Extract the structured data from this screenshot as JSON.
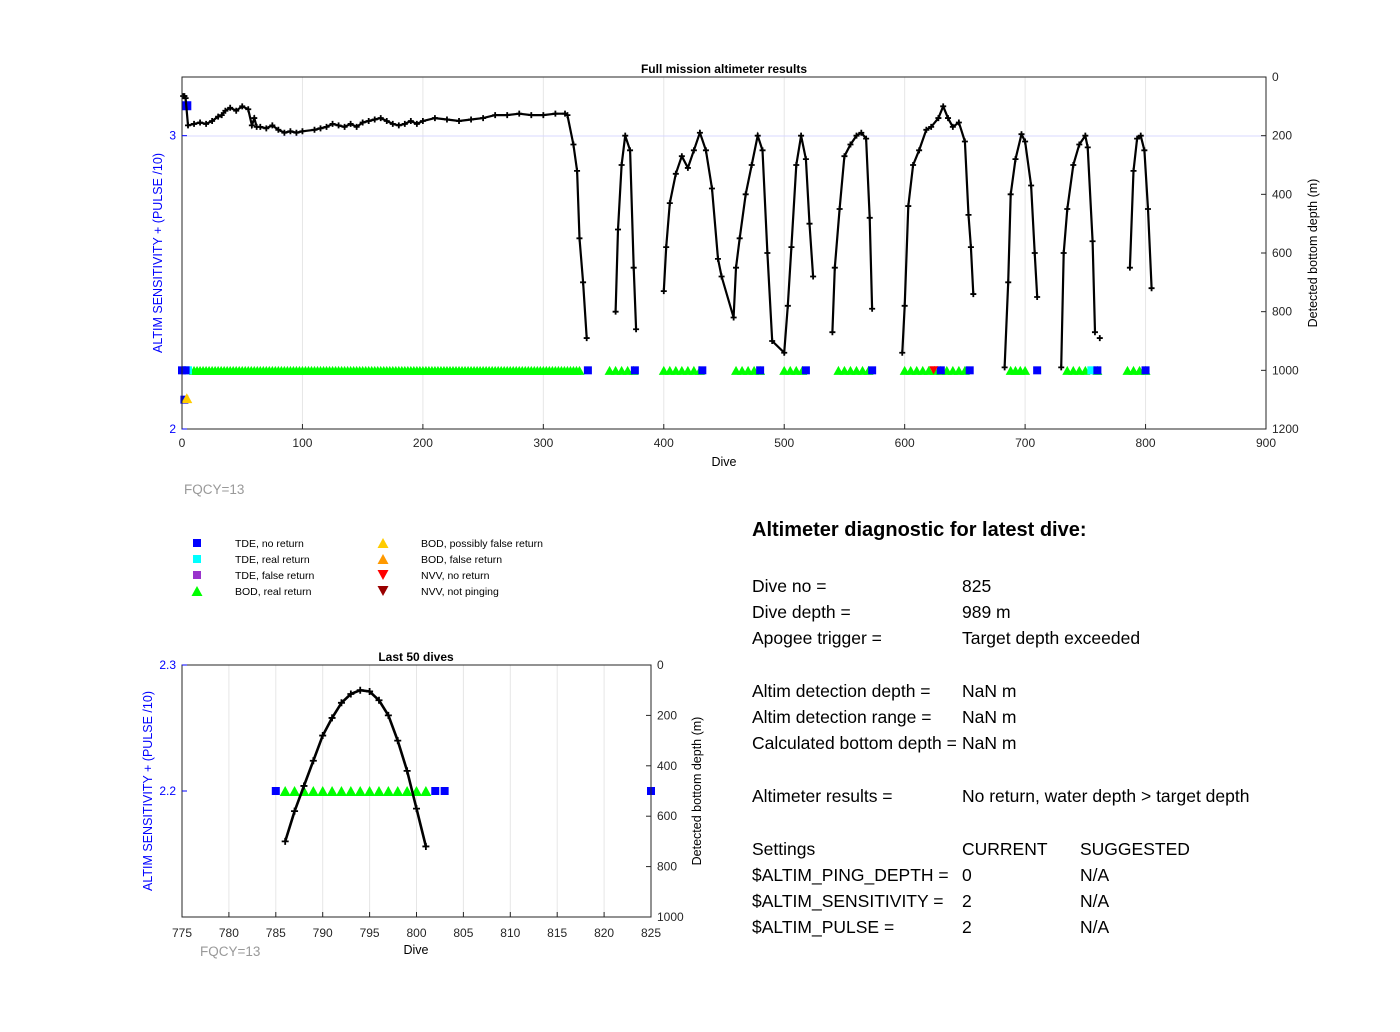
{
  "full_mission": {
    "title": "Full mission altimeter results",
    "xlabel": "Dive",
    "ylabel_left": "ALTIM SENSITIVITY + (PULSE /10)",
    "ylabel_right": "Detected bottom depth (m)",
    "fqcy_label": "FQCY=13",
    "x_ticks": [
      "0",
      "100",
      "200",
      "300",
      "400",
      "500",
      "600",
      "700",
      "800",
      "900"
    ],
    "y_left_ticks": [
      "2",
      "3"
    ],
    "y_right_ticks": [
      "0",
      "200",
      "400",
      "600",
      "800",
      "1000",
      "1200"
    ],
    "xlim": [
      0,
      900
    ],
    "ylim_left": [
      2,
      3.2
    ],
    "ylim_right": [
      1200,
      0
    ],
    "depth_sample": [
      [
        1,
        65
      ],
      [
        2,
        65
      ],
      [
        3,
        72
      ],
      [
        5,
        165
      ],
      [
        10,
        160
      ],
      [
        15,
        155
      ],
      [
        20,
        160
      ],
      [
        25,
        150
      ],
      [
        30,
        135
      ],
      [
        33,
        130
      ],
      [
        36,
        115
      ],
      [
        40,
        105
      ],
      [
        45,
        115
      ],
      [
        50,
        100
      ],
      [
        55,
        110
      ],
      [
        58,
        165
      ],
      [
        60,
        140
      ],
      [
        62,
        170
      ],
      [
        65,
        170
      ],
      [
        70,
        175
      ],
      [
        75,
        165
      ],
      [
        80,
        180
      ],
      [
        85,
        190
      ],
      [
        90,
        185
      ],
      [
        95,
        190
      ],
      [
        100,
        185
      ],
      [
        110,
        180
      ],
      [
        115,
        175
      ],
      [
        120,
        170
      ],
      [
        125,
        160
      ],
      [
        130,
        165
      ],
      [
        135,
        170
      ],
      [
        140,
        160
      ],
      [
        145,
        170
      ],
      [
        150,
        155
      ],
      [
        155,
        150
      ],
      [
        160,
        145
      ],
      [
        165,
        140
      ],
      [
        170,
        150
      ],
      [
        175,
        160
      ],
      [
        180,
        165
      ],
      [
        185,
        160
      ],
      [
        190,
        150
      ],
      [
        195,
        160
      ],
      [
        200,
        150
      ],
      [
        210,
        140
      ],
      [
        220,
        145
      ],
      [
        230,
        150
      ],
      [
        240,
        145
      ],
      [
        250,
        140
      ],
      [
        260,
        130
      ],
      [
        270,
        130
      ],
      [
        280,
        125
      ],
      [
        290,
        130
      ],
      [
        300,
        130
      ],
      [
        310,
        125
      ],
      [
        318,
        125
      ],
      [
        320,
        130
      ],
      [
        325,
        230
      ],
      [
        328,
        320
      ],
      [
        330,
        550
      ],
      [
        333,
        700
      ],
      [
        336,
        890
      ],
      [
        360,
        800
      ],
      [
        362,
        520
      ],
      [
        365,
        300
      ],
      [
        368,
        200
      ],
      [
        372,
        250
      ],
      [
        375,
        650
      ],
      [
        377,
        860
      ],
      [
        400,
        730
      ],
      [
        402,
        580
      ],
      [
        405,
        430
      ],
      [
        410,
        330
      ],
      [
        415,
        270
      ],
      [
        420,
        310
      ],
      [
        425,
        250
      ],
      [
        430,
        190
      ],
      [
        435,
        250
      ],
      [
        440,
        380
      ],
      [
        445,
        620
      ],
      [
        448,
        680
      ],
      [
        458,
        820
      ],
      [
        460,
        650
      ],
      [
        463,
        550
      ],
      [
        468,
        400
      ],
      [
        473,
        300
      ],
      [
        478,
        200
      ],
      [
        482,
        250
      ],
      [
        486,
        600
      ],
      [
        490,
        900
      ],
      [
        500,
        940
      ],
      [
        503,
        780
      ],
      [
        506,
        580
      ],
      [
        510,
        300
      ],
      [
        514,
        200
      ],
      [
        518,
        280
      ],
      [
        521,
        500
      ],
      [
        524,
        680
      ],
      [
        540,
        870
      ],
      [
        542,
        650
      ],
      [
        546,
        450
      ],
      [
        550,
        270
      ],
      [
        555,
        230
      ],
      [
        560,
        200
      ],
      [
        564,
        190
      ],
      [
        568,
        210
      ],
      [
        571,
        480
      ],
      [
        573,
        790
      ],
      [
        598,
        940
      ],
      [
        600,
        780
      ],
      [
        603,
        440
      ],
      [
        607,
        300
      ],
      [
        612,
        250
      ],
      [
        618,
        180
      ],
      [
        622,
        170
      ],
      [
        628,
        140
      ],
      [
        632,
        100
      ],
      [
        636,
        140
      ],
      [
        640,
        170
      ],
      [
        645,
        155
      ],
      [
        650,
        220
      ],
      [
        653,
        470
      ],
      [
        655,
        580
      ],
      [
        657,
        740
      ],
      [
        683,
        990
      ],
      [
        686,
        700
      ],
      [
        688,
        400
      ],
      [
        692,
        280
      ],
      [
        697,
        195
      ],
      [
        700,
        220
      ],
      [
        705,
        370
      ],
      [
        708,
        600
      ],
      [
        710,
        750
      ],
      [
        730,
        990
      ],
      [
        732,
        600
      ],
      [
        735,
        450
      ],
      [
        740,
        300
      ],
      [
        745,
        230
      ],
      [
        750,
        200
      ],
      [
        752,
        240
      ],
      [
        756,
        560
      ],
      [
        758,
        870
      ],
      [
        787,
        650
      ],
      [
        790,
        320
      ],
      [
        793,
        210
      ],
      [
        796,
        200
      ],
      [
        799,
        250
      ],
      [
        802,
        450
      ],
      [
        805,
        720
      ]
    ],
    "marker_dives": {
      "tde_no_return": [
        0,
        3,
        337,
        376,
        432,
        480,
        518,
        573,
        630,
        654,
        710,
        760,
        800
      ],
      "tde_real_return": [
        5,
        755
      ],
      "bod_real_return_range": [
        10,
        330
      ],
      "bod_real_return_extra": [
        355,
        360,
        365,
        370,
        375,
        400,
        405,
        410,
        415,
        420,
        425,
        430,
        460,
        465,
        470,
        475,
        480,
        500,
        505,
        510,
        515,
        545,
        550,
        555,
        560,
        565,
        570,
        600,
        605,
        610,
        615,
        620,
        625,
        630,
        635,
        640,
        645,
        650,
        688,
        692,
        696,
        700,
        735,
        740,
        745,
        750,
        760,
        785,
        790,
        795,
        800
      ],
      "bod_possibly_false": [
        5
      ],
      "nvv_no_return": [
        624
      ]
    }
  },
  "last50": {
    "title": "Last 50 dives",
    "xlabel": "Dive",
    "ylabel_left": "ALTIM SENSITIVITY + (PULSE /10)",
    "ylabel_right": "Detected bottom depth (m)",
    "fqcy_label": "FQCY=13",
    "x_ticks": [
      "775",
      "780",
      "785",
      "790",
      "795",
      "800",
      "805",
      "810",
      "815",
      "820",
      "825"
    ],
    "y_left_ticks": [
      "2.2",
      "2.3"
    ],
    "y_right_ticks": [
      "0",
      "200",
      "400",
      "600",
      "800",
      "1000"
    ],
    "xlim": [
      775,
      825
    ],
    "ylim_left": [
      2.1,
      2.3
    ],
    "ylim_right": [
      1000,
      0
    ]
  },
  "chart_data": [
    {
      "type": "line",
      "title": "Full mission altimeter results",
      "xlabel": "Dive",
      "ylabel": "Detected bottom depth (m)",
      "ylabel_left": "ALTIM SENSITIVITY + (PULSE /10)",
      "xlim": [
        0,
        900
      ],
      "ylim": [
        1200,
        0
      ],
      "grid": true
    },
    {
      "type": "line",
      "title": "Last 50 dives",
      "xlabel": "Dive",
      "ylabel": "Detected bottom depth (m)",
      "ylabel_left": "ALTIM SENSITIVITY + (PULSE /10)",
      "x": [
        786,
        787,
        788,
        789,
        790,
        791,
        792,
        793,
        794,
        795,
        796,
        797,
        798,
        799,
        800,
        801
      ],
      "series": [
        {
          "values": [
            700,
            580,
            480,
            380,
            280,
            210,
            150,
            115,
            100,
            105,
            140,
            200,
            300,
            420,
            570,
            720
          ]
        }
      ],
      "sensitivity_markers": {
        "tde_no_return": [
          785,
          802,
          803,
          825
        ],
        "bod_real_return": [
          786,
          787,
          788,
          789,
          790,
          791,
          792,
          793,
          794,
          795,
          796,
          797,
          798,
          799,
          800,
          801
        ]
      },
      "xlim": [
        775,
        825
      ],
      "ylim": [
        1000,
        0
      ],
      "grid": true
    }
  ],
  "legend": [
    {
      "label": "TDE, no return",
      "marker": "square",
      "color": "#0000ff"
    },
    {
      "label": "TDE, real return",
      "marker": "square",
      "color": "#00ffff"
    },
    {
      "label": "TDE, false return",
      "marker": "square",
      "color": "#9933cc"
    },
    {
      "label": "BOD, real return",
      "marker": "triangle-up",
      "color": "#00ff00"
    },
    {
      "label": "BOD, possibly false return",
      "marker": "triangle-up",
      "color": "#ffcc00"
    },
    {
      "label": "BOD, false return",
      "marker": "triangle-up",
      "color": "#ff9900"
    },
    {
      "label": "NVV, no return",
      "marker": "triangle-down",
      "color": "#ff0000"
    },
    {
      "label": "NVV, not pinging",
      "marker": "triangle-down",
      "color": "#990000"
    }
  ],
  "diagnostic": {
    "title": "Altimeter diagnostic for latest dive:",
    "dive_no_label": "Dive no =",
    "dive_no": "825",
    "dive_depth_label": "Dive depth =",
    "dive_depth": "989 m",
    "apogee_label": "Apogee trigger =",
    "apogee": "Target depth exceeded",
    "det_depth_label": "Altim detection depth =",
    "det_depth": "NaN m",
    "det_range_label": "Altim detection range =",
    "det_range": "NaN m",
    "calc_depth_label": "Calculated bottom depth =",
    "calc_depth": "NaN m",
    "results_label": "Altimeter results =",
    "results": "No return, water depth > target depth",
    "settings_label": "Settings",
    "current_label": "CURRENT",
    "suggested_label": "SUGGESTED",
    "ping_depth_label": "$ALTIM_PING_DEPTH =",
    "ping_depth_cur": "0",
    "ping_depth_sug": "N/A",
    "sensitivity_label": "$ALTIM_SENSITIVITY =",
    "sensitivity_cur": "2",
    "sensitivity_sug": "N/A",
    "pulse_label": "$ALTIM_PULSE =",
    "pulse_cur": "2",
    "pulse_sug": "N/A"
  },
  "colors": {
    "axis": "#262626",
    "grid": "#e6e6e6",
    "left_axis": "#0000ff",
    "line": "#000000",
    "fqcy": "#999999"
  }
}
